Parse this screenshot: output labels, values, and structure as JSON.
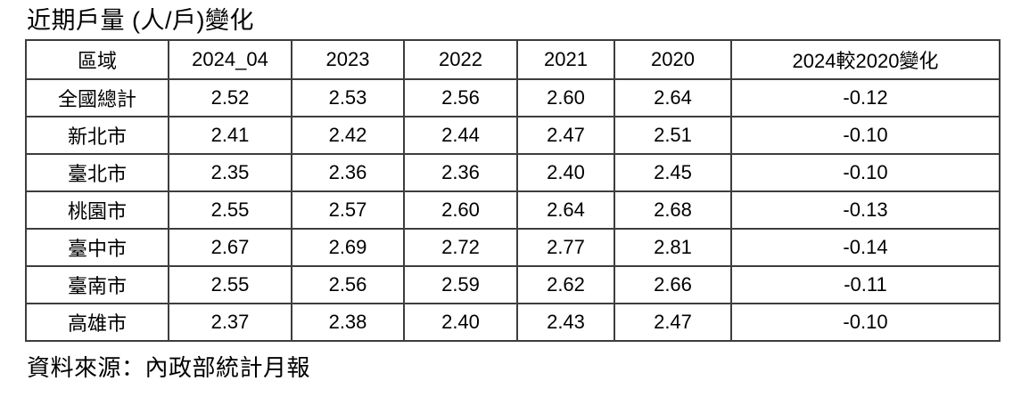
{
  "title": "近期戶量 (人/戶)變化",
  "source": "資料來源：內政部統計月報",
  "table": {
    "headers": [
      "區域",
      "2024_04",
      "2023",
      "2022",
      "2021",
      "2020",
      "2024較2020變化"
    ],
    "rows": [
      {
        "region": "全國總計",
        "values": [
          "2.52",
          "2.53",
          "2.56",
          "2.60",
          "2.64"
        ],
        "change": "-0.12"
      },
      {
        "region": "新北市",
        "values": [
          "2.41",
          "2.42",
          "2.44",
          "2.47",
          "2.51"
        ],
        "change": "-0.10"
      },
      {
        "region": "臺北市",
        "values": [
          "2.35",
          "2.36",
          "2.36",
          "2.40",
          "2.45"
        ],
        "change": "-0.10"
      },
      {
        "region": "桃園市",
        "values": [
          "2.55",
          "2.57",
          "2.60",
          "2.64",
          "2.68"
        ],
        "change": "-0.13"
      },
      {
        "region": "臺中市",
        "values": [
          "2.67",
          "2.69",
          "2.72",
          "2.77",
          "2.81"
        ],
        "change": "-0.14"
      },
      {
        "region": "臺南市",
        "values": [
          "2.55",
          "2.56",
          "2.59",
          "2.62",
          "2.66"
        ],
        "change": "-0.11"
      },
      {
        "region": "高雄市",
        "values": [
          "2.37",
          "2.38",
          "2.40",
          "2.43",
          "2.47"
        ],
        "change": "-0.10"
      }
    ]
  },
  "chart_data": {
    "type": "table",
    "title": "近期戶量 (人/戶)變化",
    "columns": [
      "區域",
      "2024_04",
      "2023",
      "2022",
      "2021",
      "2020",
      "2024較2020變化"
    ],
    "rows": [
      [
        "全國總計",
        2.52,
        2.53,
        2.56,
        2.6,
        2.64,
        -0.12
      ],
      [
        "新北市",
        2.41,
        2.42,
        2.44,
        2.47,
        2.51,
        -0.1
      ],
      [
        "臺北市",
        2.35,
        2.36,
        2.36,
        2.4,
        2.45,
        -0.1
      ],
      [
        "桃園市",
        2.55,
        2.57,
        2.6,
        2.64,
        2.68,
        -0.13
      ],
      [
        "臺中市",
        2.67,
        2.69,
        2.72,
        2.77,
        2.81,
        -0.14
      ],
      [
        "臺南市",
        2.55,
        2.56,
        2.59,
        2.62,
        2.66,
        -0.11
      ],
      [
        "高雄市",
        2.37,
        2.38,
        2.4,
        2.43,
        2.47,
        -0.1
      ]
    ],
    "footnote": "資料來源：內政部統計月報"
  },
  "colors": {
    "background": "#ffffff",
    "text": "#000000",
    "border": "#3d3d3d"
  }
}
